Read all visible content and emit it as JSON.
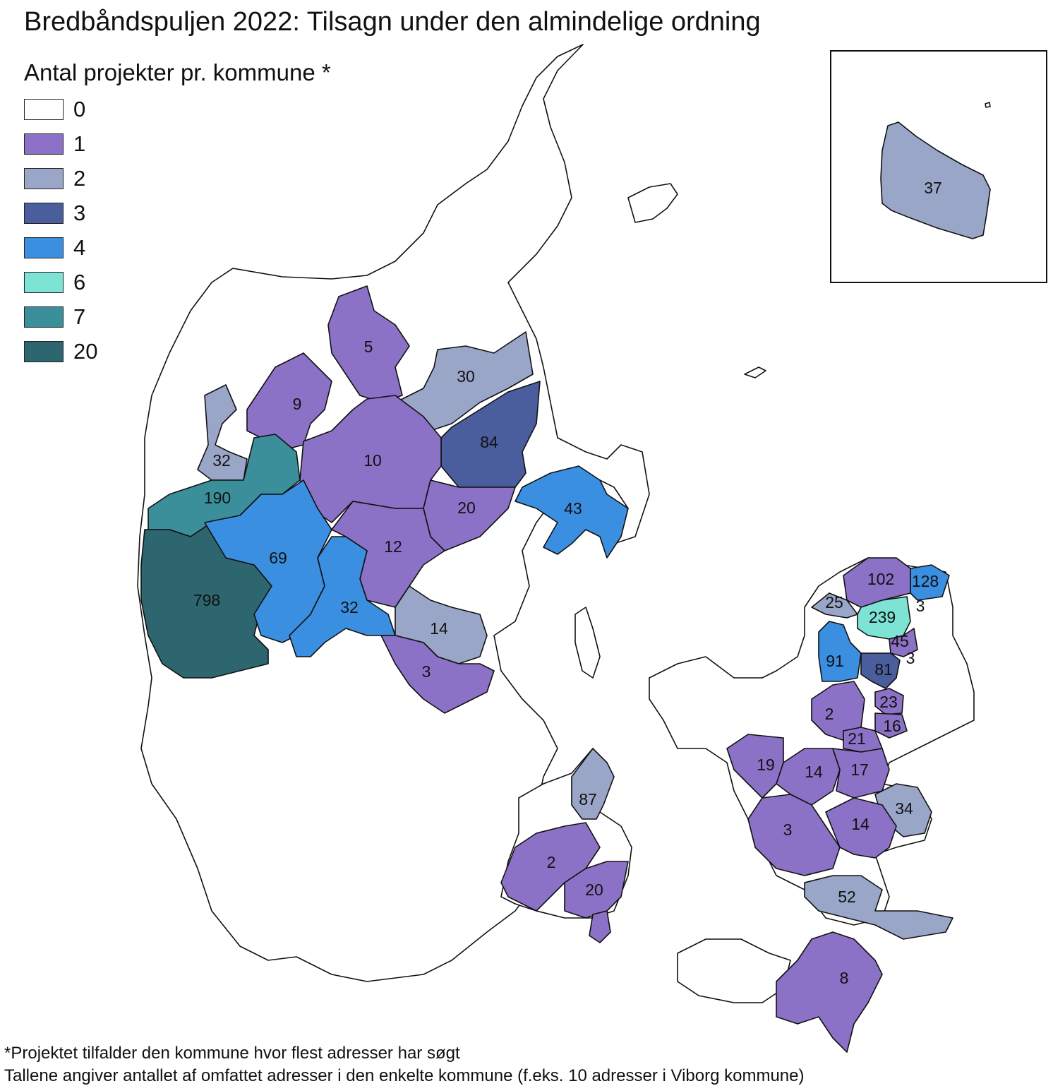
{
  "title": "Bredbåndspuljen 2022: Tilsagn under den almindelige ordning",
  "legend": {
    "title": "Antal projekter pr. kommune *",
    "items": [
      {
        "label": "0",
        "color": "#ffffff"
      },
      {
        "label": "1",
        "color": "#8b72c6"
      },
      {
        "label": "2",
        "color": "#9aa6c8"
      },
      {
        "label": "3",
        "color": "#4a5e9e"
      },
      {
        "label": "4",
        "color": "#3b8fe0"
      },
      {
        "label": "6",
        "color": "#7de3d4"
      },
      {
        "label": "7",
        "color": "#3a8f9b"
      },
      {
        "label": "20",
        "color": "#2e6670"
      }
    ]
  },
  "map_labels": {
    "thisted": "5",
    "jammerbugt": "30",
    "vesthimmerland": "84",
    "morsoe": "9",
    "lemvig": "32",
    "viborg": "10",
    "randers": "20",
    "djursland": "43",
    "holstebro": "190",
    "herning": "69",
    "ringkoebing": "798",
    "silkeborg": "12",
    "ikast": "32",
    "skanderborg": "14",
    "horsens": "3",
    "gribskov": "102",
    "helsingoer": "128",
    "halsnaes": "25",
    "hilleroed": "239",
    "fredensborg": "3",
    "alleroed": "45",
    "frederikssund": "91",
    "egedal": "81",
    "rudersdal": "3",
    "furesoe": "23",
    "roskilde": "2",
    "glostrup": "16",
    "greve": "21",
    "holbaek": "19",
    "sorø": "14",
    "koege": "17",
    "stevns": "34",
    "naestved": "3",
    "faxe": "14",
    "vordingborg": "52",
    "guldborgsund": "8",
    "nyborg": "87",
    "faaborg": "2",
    "svendborg": "20",
    "bornholm": "37"
  },
  "footnote": {
    "line1": "*Projektet tilfalder den kommune hvor flest adresser har søgt",
    "line2": "Tallene angiver antallet af omfattet adresser i den enkelte kommune (f.eks. 10 adresser i Viborg kommune)"
  }
}
